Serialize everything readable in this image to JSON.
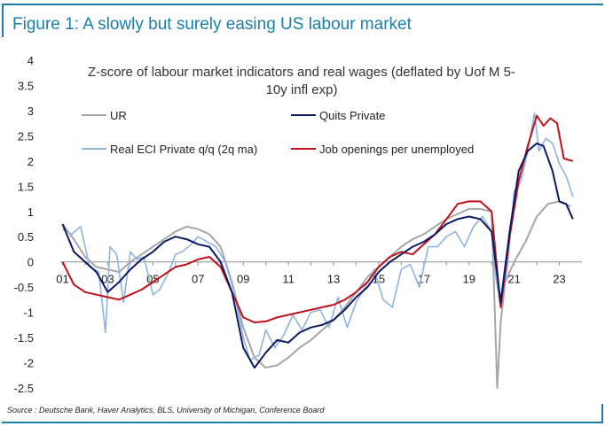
{
  "header": {
    "title": "Figure 1: A slowly but surely easing US labour market"
  },
  "footer": {
    "source": "Source : Deutsche Bank, Haver Analytics, BLS, University of Michigan, Conference Board"
  },
  "chart_data": {
    "type": "line",
    "title_lines": [
      "Z-score of labour market indicators and real wages (deflated by Uof M 5-",
      "10y infl exp)"
    ],
    "xlabel": "",
    "ylabel": "",
    "xlim": [
      2000.9,
      2024.0
    ],
    "ylim": [
      -2.5,
      4
    ],
    "y_ticks": [
      "4",
      "3.5",
      "3",
      "2.5",
      "2",
      "1.5",
      "1",
      "0.5",
      "0",
      "-0.5",
      "-1",
      "-1.5",
      "-2",
      "-2.5"
    ],
    "x_ticks": [
      "01",
      "03",
      "05",
      "07",
      "09",
      "11",
      "13",
      "15",
      "17",
      "19",
      "21",
      "23"
    ],
    "grid": false,
    "legend_position": "top",
    "colors": {
      "UR": "#a6a6a6",
      "Quits Private": "#0b1a63",
      "Real ECI": "#8fb4dd",
      "Job openings": "#c0101a"
    },
    "series": [
      {
        "name": "UR",
        "x": [
          2001.0,
          2001.5,
          2002.0,
          2002.5,
          2003.0,
          2003.5,
          2004.0,
          2004.5,
          2005.0,
          2005.5,
          2006.0,
          2006.5,
          2007.0,
          2007.5,
          2008.0,
          2008.5,
          2009.0,
          2009.5,
          2010.0,
          2010.5,
          2011.0,
          2011.5,
          2012.0,
          2012.5,
          2013.0,
          2013.5,
          2014.0,
          2014.5,
          2015.0,
          2015.5,
          2016.0,
          2016.5,
          2017.0,
          2017.5,
          2018.0,
          2018.5,
          2019.0,
          2019.5,
          2020.0,
          2020.25,
          2020.4,
          2020.6,
          2021.0,
          2021.5,
          2022.0,
          2022.5,
          2023.0,
          2023.5
        ],
        "values": [
          0.75,
          0.45,
          0.1,
          -0.1,
          -0.15,
          -0.2,
          0.0,
          0.15,
          0.3,
          0.45,
          0.6,
          0.7,
          0.65,
          0.55,
          0.3,
          -0.4,
          -1.3,
          -1.9,
          -2.1,
          -2.05,
          -1.9,
          -1.7,
          -1.55,
          -1.35,
          -1.15,
          -0.9,
          -0.6,
          -0.3,
          -0.1,
          0.1,
          0.3,
          0.45,
          0.55,
          0.7,
          0.85,
          0.95,
          1.05,
          1.05,
          1.0,
          -2.5,
          -1.2,
          -0.4,
          0.0,
          0.4,
          0.9,
          1.15,
          1.2,
          1.1
        ]
      },
      {
        "name": "Quits Private",
        "x": [
          2001.0,
          2001.5,
          2002.0,
          2002.5,
          2003.0,
          2003.5,
          2004.0,
          2004.5,
          2005.0,
          2005.5,
          2006.0,
          2006.5,
          2007.0,
          2007.5,
          2008.0,
          2008.5,
          2009.0,
          2009.5,
          2010.0,
          2010.5,
          2011.0,
          2011.5,
          2012.0,
          2012.5,
          2013.0,
          2013.5,
          2014.0,
          2014.5,
          2015.0,
          2015.5,
          2016.0,
          2016.5,
          2017.0,
          2017.5,
          2018.0,
          2018.5,
          2019.0,
          2019.5,
          2020.0,
          2020.4,
          2020.8,
          2021.2,
          2021.6,
          2022.0,
          2022.3,
          2022.7,
          2023.0,
          2023.3,
          2023.6
        ],
        "values": [
          0.75,
          0.2,
          0.0,
          -0.2,
          -0.6,
          -0.4,
          -0.15,
          0.05,
          0.2,
          0.4,
          0.5,
          0.45,
          0.35,
          0.3,
          0.0,
          -0.6,
          -1.7,
          -2.1,
          -1.8,
          -1.55,
          -1.6,
          -1.4,
          -1.3,
          -1.25,
          -1.15,
          -0.95,
          -0.7,
          -0.5,
          -0.2,
          0.0,
          0.15,
          0.3,
          0.4,
          0.55,
          0.75,
          0.85,
          0.9,
          0.85,
          0.6,
          -0.8,
          0.6,
          1.8,
          2.2,
          2.35,
          2.3,
          1.8,
          1.2,
          1.15,
          0.85
        ]
      },
      {
        "name": "Real ECI Private q/q (2q ma)",
        "x": [
          2001.0,
          2001.4,
          2001.8,
          2002.2,
          2002.6,
          2002.9,
          2003.1,
          2003.4,
          2003.7,
          2004.0,
          2004.3,
          2004.6,
          2005.0,
          2005.3,
          2005.7,
          2006.0,
          2006.3,
          2006.7,
          2007.0,
          2007.4,
          2007.8,
          2008.2,
          2008.6,
          2009.0,
          2009.3,
          2009.7,
          2010.0,
          2010.4,
          2010.8,
          2011.2,
          2011.6,
          2012.0,
          2012.4,
          2012.8,
          2013.2,
          2013.6,
          2014.0,
          2014.4,
          2014.8,
          2015.2,
          2015.6,
          2016.0,
          2016.4,
          2016.8,
          2017.2,
          2017.6,
          2018.0,
          2018.4,
          2018.8,
          2019.2,
          2019.6,
          2020.0,
          2020.2,
          2020.4,
          2020.7,
          2021.0,
          2021.3,
          2021.6,
          2021.9,
          2022.1,
          2022.4,
          2022.7,
          2023.0,
          2023.3,
          2023.6
        ],
        "values": [
          0.65,
          0.55,
          0.7,
          -0.1,
          -0.2,
          -1.4,
          0.3,
          0.15,
          -0.8,
          0.2,
          0.05,
          0.1,
          -0.65,
          -0.55,
          -0.2,
          0.15,
          0.2,
          0.35,
          0.5,
          0.4,
          0.3,
          0.0,
          -0.6,
          -1.5,
          -1.95,
          -1.85,
          -1.35,
          -1.7,
          -1.45,
          -1.05,
          -1.35,
          -1.0,
          -0.95,
          -1.3,
          -0.7,
          -1.3,
          -0.8,
          -0.5,
          -0.15,
          -0.75,
          -0.9,
          -0.15,
          -0.05,
          -0.5,
          0.3,
          0.3,
          0.5,
          0.6,
          0.3,
          0.7,
          0.9,
          0.6,
          -0.35,
          -0.9,
          -0.1,
          1.4,
          1.6,
          2.2,
          2.95,
          2.2,
          2.45,
          2.35,
          1.95,
          1.7,
          1.3
        ]
      },
      {
        "name": "Job openings per unemployed",
        "x": [
          2001.0,
          2001.5,
          2002.0,
          2002.5,
          2003.0,
          2003.5,
          2004.0,
          2004.5,
          2005.0,
          2005.5,
          2006.0,
          2006.5,
          2007.0,
          2007.5,
          2008.0,
          2008.5,
          2009.0,
          2009.5,
          2010.0,
          2010.5,
          2011.0,
          2011.5,
          2012.0,
          2012.5,
          2013.0,
          2013.5,
          2014.0,
          2014.5,
          2015.0,
          2015.5,
          2016.0,
          2016.5,
          2017.0,
          2017.5,
          2018.0,
          2018.5,
          2019.0,
          2019.5,
          2020.0,
          2020.4,
          2020.8,
          2021.2,
          2021.6,
          2022.0,
          2022.3,
          2022.6,
          2022.9,
          2023.2,
          2023.6
        ],
        "values": [
          0.0,
          -0.45,
          -0.6,
          -0.65,
          -0.7,
          -0.75,
          -0.65,
          -0.55,
          -0.4,
          -0.25,
          -0.1,
          -0.05,
          0.05,
          0.1,
          -0.1,
          -0.6,
          -1.1,
          -1.2,
          -1.18,
          -1.1,
          -1.05,
          -1.0,
          -0.95,
          -0.9,
          -0.85,
          -0.75,
          -0.6,
          -0.4,
          -0.1,
          0.1,
          0.2,
          0.15,
          0.35,
          0.55,
          0.85,
          1.15,
          1.2,
          1.2,
          1.0,
          -0.9,
          0.5,
          1.6,
          2.3,
          2.9,
          2.7,
          2.85,
          2.75,
          2.05,
          2.0
        ]
      }
    ]
  }
}
